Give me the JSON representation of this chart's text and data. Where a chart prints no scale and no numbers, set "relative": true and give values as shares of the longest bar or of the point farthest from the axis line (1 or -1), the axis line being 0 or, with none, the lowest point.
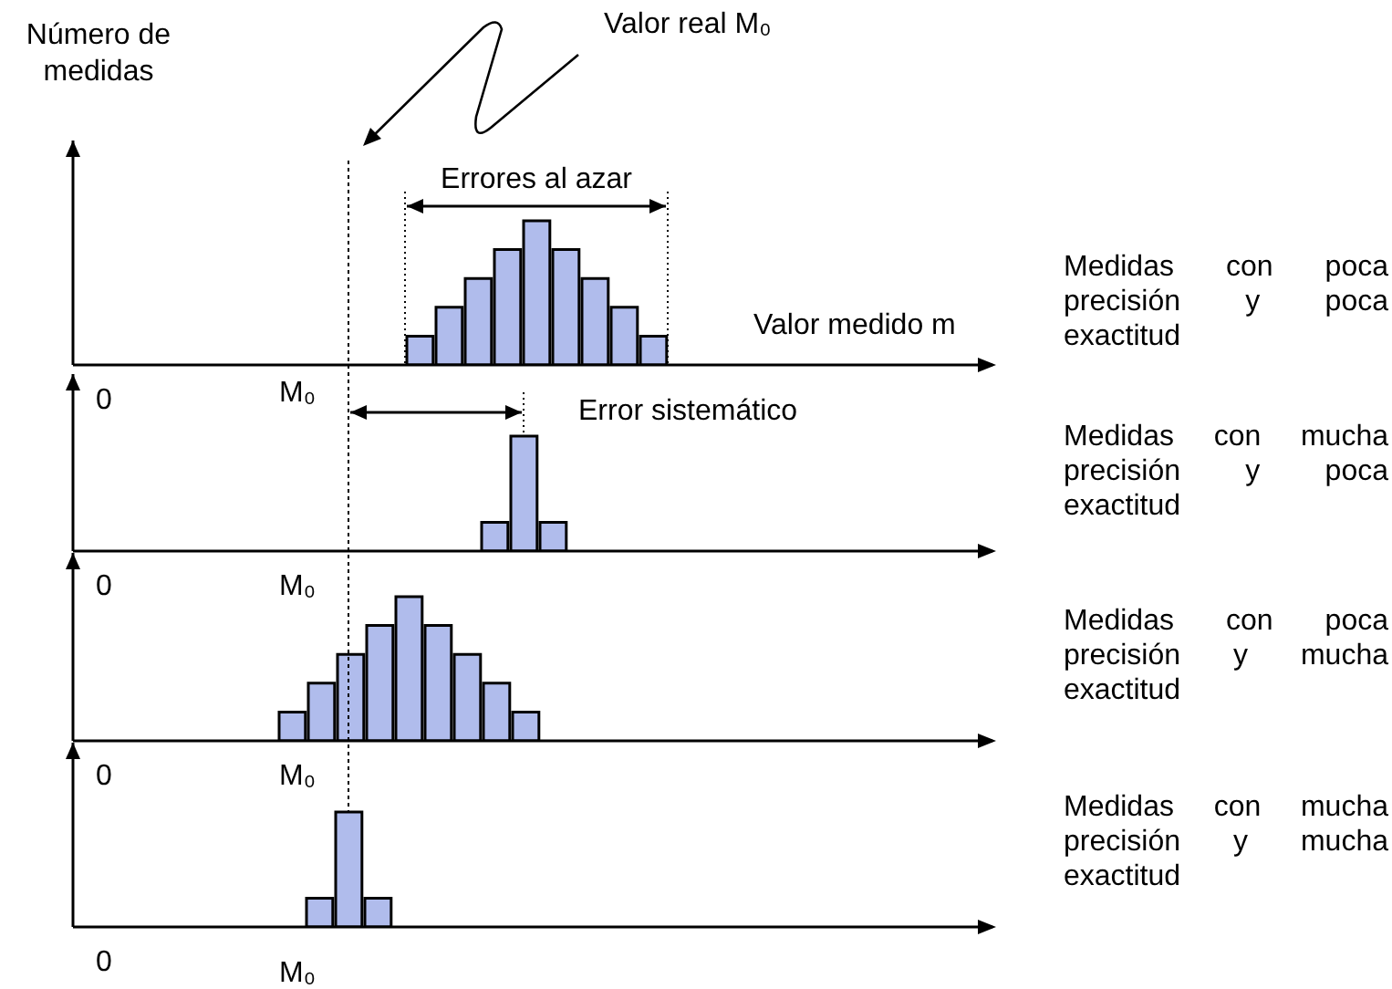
{
  "chart_data": [
    {
      "type": "bar",
      "relative": true,
      "categories": [
        null,
        null,
        null,
        null,
        null,
        null,
        null,
        null,
        null
      ],
      "values": [
        0.2,
        0.4,
        0.6,
        0.8,
        1,
        0.8,
        0.6,
        0.4,
        0.2
      ],
      "color": "#b0bcec",
      "ylabel": "Número de medidas",
      "xlabel": "Valor medido m",
      "annotations": [
        "Valor real M₀",
        "Errores al azar",
        "0",
        "M₀",
        "Medidas con poca precisión y poca exactitud"
      ]
    },
    {
      "type": "bar",
      "relative": true,
      "categories": [
        null,
        null,
        null
      ],
      "values": [
        0.25,
        1,
        0.25
      ],
      "color": "#b0bcec",
      "annotations": [
        "Error sistemático",
        "0",
        "M₀",
        "Medidas con mucha precisión y poca exactitud"
      ]
    },
    {
      "type": "bar",
      "relative": true,
      "categories": [
        null,
        null,
        null,
        null,
        null,
        null,
        null,
        null,
        null
      ],
      "values": [
        0.2,
        0.4,
        0.6,
        0.8,
        1,
        0.8,
        0.6,
        0.4,
        0.2
      ],
      "color": "#b0bcec",
      "annotations": [
        "0",
        "M₀",
        "Medidas con poca precisión y mucha exactitud"
      ]
    },
    {
      "type": "bar",
      "relative": true,
      "categories": [
        null,
        null,
        null
      ],
      "values": [
        0.25,
        1,
        0.25
      ],
      "color": "#b0bcec",
      "annotations": [
        "0",
        "M₀",
        "Medidas con mucha precisión y mucha exactitud"
      ]
    }
  ]
}
